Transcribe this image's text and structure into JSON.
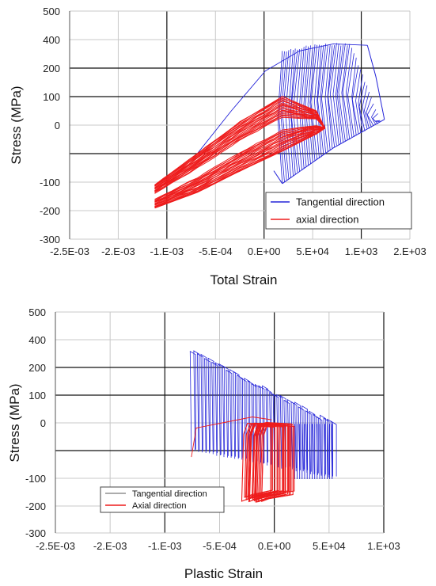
{
  "colors": {
    "tangential": "#2323d8",
    "axial": "#ee1c1c",
    "grid_light": "#c8c8c8",
    "grid_dark": "#111111",
    "legend_line_grey": "#909090"
  },
  "chart_data": [
    {
      "type": "line",
      "title": "",
      "xlabel": "Total Strain",
      "ylabel": "Stress (MPa)",
      "x_tick_labels": [
        "-2.5E-03",
        "-2.E-03",
        "-1.E-03",
        "-5.E-04",
        "0.E+00",
        "5.E+04",
        "1.E+03",
        "2.E+03"
      ],
      "y_tick_labels": [
        "500",
        "400",
        "200",
        "100",
        "0",
        "-100",
        "-200",
        "-300"
      ],
      "xlim": [
        -0.0025,
        0.0015
      ],
      "ylim": [
        -300,
        500
      ],
      "grid": true,
      "legend": {
        "position": "bottom-right",
        "entries": [
          "Tangential direction",
          "axial direction"
        ]
      },
      "series": [
        {
          "name": "Tangential direction",
          "color": "tangential",
          "envelope": {
            "loading": [
              [
                -0.001,
                0
              ],
              [
                -0.0006,
                150
              ],
              [
                -0.0002,
                290
              ],
              [
                0.0002,
                360
              ],
              [
                0.0006,
                385
              ],
              [
                0.001,
                380
              ]
            ],
            "upper_front": [
              [
                0.001,
                380
              ],
              [
                0.0011,
                270
              ],
              [
                0.0012,
                120
              ]
            ],
            "lower_front": [
              [
                0.0,
                -105
              ],
              [
                0.0006,
                20
              ],
              [
                0.0012,
                120
              ]
            ],
            "left_edge": [
              [
                -0.0001,
                -60
              ],
              [
                0.0,
                -105
              ]
            ],
            "cycles": 46
          }
        },
        {
          "name": "axial direction",
          "color": "axial",
          "envelope": {
            "upper": [
              [
                -0.0015,
                -110
              ],
              [
                -0.001,
                0
              ],
              [
                -0.0005,
                110
              ],
              [
                0.0,
                200
              ],
              [
                0.0004,
                150
              ],
              [
                0.0005,
                90
              ]
            ],
            "lower": [
              [
                -0.0015,
                -190
              ],
              [
                -0.001,
                -135
              ],
              [
                -0.0005,
                -60
              ],
              [
                0.0,
                10
              ],
              [
                0.0004,
                70
              ],
              [
                0.0005,
                90
              ]
            ],
            "cycles": 18
          }
        }
      ]
    },
    {
      "type": "line",
      "title": "",
      "xlabel": "Plastic Strain",
      "ylabel": "Stress (MPa)",
      "x_tick_labels": [
        "-2.5E-03",
        "-2.E-03",
        "-1.E-03",
        "-5.E-04",
        "0.E+00",
        "5.E+04",
        "1.E+03"
      ],
      "y_tick_labels": [
        "500",
        "400",
        "200",
        "100",
        "0",
        "-100",
        "-200",
        "-300"
      ],
      "xlim": [
        -0.0025,
        0.001
      ],
      "ylim": [
        -300,
        500
      ],
      "grid": true,
      "legend": {
        "position": "bottom-left",
        "entries": [
          "Tangential direction",
          "Axial direction"
        ]
      },
      "series": [
        {
          "name": "Tangential direction",
          "color": "tangential",
          "envelope": {
            "x_left": -0.00105,
            "x_right": 0.00045,
            "top_left": 360,
            "top_right": 100,
            "bottom_left": 0,
            "bottom_right": -100,
            "cycles": 40
          }
        },
        {
          "name": "Axial direction",
          "color": "axial",
          "envelope": {
            "x_left": -0.0005,
            "x_right": 5e-05,
            "top": 100,
            "bottom": -190,
            "lead_in": [
              [
                -0.00105,
                -25
              ],
              [
                -0.001,
                80
              ],
              [
                -0.0007,
                100
              ],
              [
                -0.0004,
                120
              ],
              [
                -0.0002,
                110
              ]
            ],
            "cycles": 22
          }
        }
      ]
    }
  ]
}
